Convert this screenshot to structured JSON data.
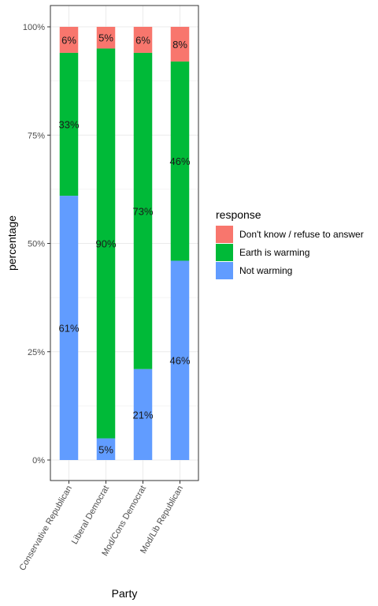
{
  "chart_data": {
    "type": "bar",
    "stacked": true,
    "xlabel": "Party",
    "ylabel": "percentage",
    "ylim": [
      0,
      100
    ],
    "yticks": [
      "0%",
      "25%",
      "50%",
      "75%",
      "100%"
    ],
    "categories": [
      "Conservative Republican",
      "Liberal Democrat",
      "Mod/Cons Democrat",
      "Mod/Lib Republican"
    ],
    "series": [
      {
        "name": "Not warming",
        "color": "#619CFF",
        "values": [
          61,
          5,
          21,
          46
        ],
        "labels": [
          "61%",
          "5%",
          "21%",
          "46%"
        ]
      },
      {
        "name": "Earth is warming",
        "color": "#00BA38",
        "values": [
          33,
          90,
          73,
          46
        ],
        "labels": [
          "33%",
          "90%",
          "73%",
          "46%"
        ]
      },
      {
        "name": "Don't know / refuse to answer",
        "color": "#F8766D",
        "values": [
          6,
          5,
          6,
          8
        ],
        "labels": [
          "6%",
          "5%",
          "6%",
          "8%"
        ]
      }
    ],
    "legend": {
      "title": "response",
      "placement": "right",
      "entries": [
        "Don't know / refuse to answer",
        "Earth is warming",
        "Not warming"
      ]
    },
    "grid": true
  }
}
